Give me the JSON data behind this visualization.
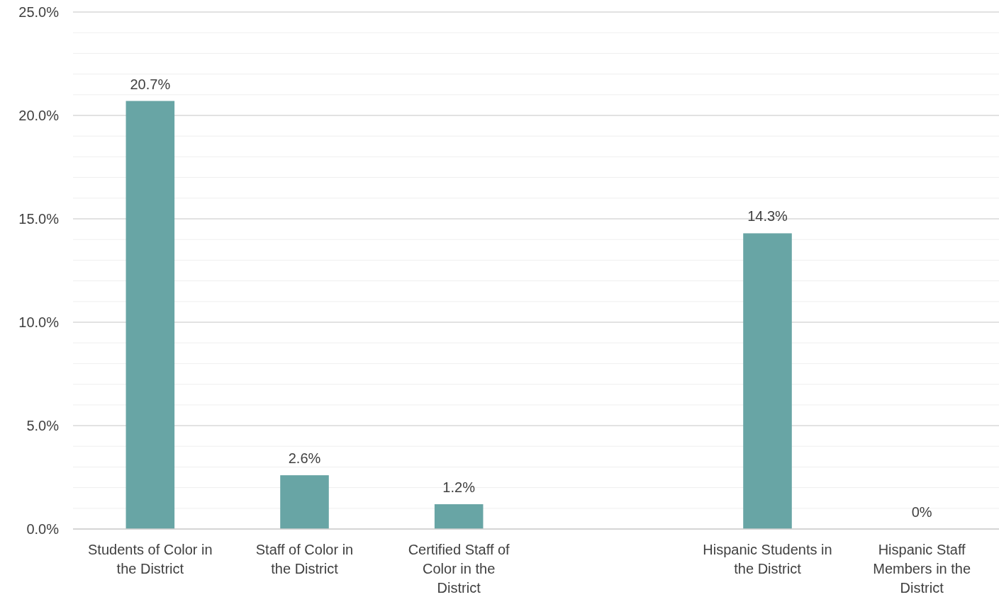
{
  "chart_data": {
    "type": "bar",
    "categories": [
      "Students of Color in the District",
      "Staff of Color in the District",
      "Certified Staff of Color in the District",
      null,
      "Hispanic Students in the District",
      "Hispanic Staff Members in the District"
    ],
    "values": [
      20.7,
      2.6,
      1.2,
      null,
      14.3,
      0
    ],
    "value_labels": [
      "20.7%",
      "2.6%",
      "1.2%",
      null,
      "14.3%",
      "0%"
    ],
    "color": "#68a5a5",
    "ylim": [
      0,
      25
    ],
    "yticks": [
      {
        "value": 0,
        "label": "0.0%"
      },
      {
        "value": 1,
        "label": null
      },
      {
        "value": 2,
        "label": null
      },
      {
        "value": 3,
        "label": null
      },
      {
        "value": 4,
        "label": null
      },
      {
        "value": 5,
        "label": "5.0%"
      },
      {
        "value": 6,
        "label": null
      },
      {
        "value": 7,
        "label": null
      },
      {
        "value": 8,
        "label": null
      },
      {
        "value": 9,
        "label": null
      },
      {
        "value": 10,
        "label": "10.0%"
      },
      {
        "value": 11,
        "label": null
      },
      {
        "value": 12,
        "label": null
      },
      {
        "value": 13,
        "label": null
      },
      {
        "value": 14,
        "label": null
      },
      {
        "value": 15,
        "label": "15.0%"
      },
      {
        "value": 16,
        "label": null
      },
      {
        "value": 17,
        "label": null
      },
      {
        "value": 18,
        "label": null
      },
      {
        "value": 19,
        "label": null
      },
      {
        "value": 20,
        "label": "20.0%"
      },
      {
        "value": 21,
        "label": null
      },
      {
        "value": 22,
        "label": null
      },
      {
        "value": 23,
        "label": null
      },
      {
        "value": 24,
        "label": null
      },
      {
        "value": 25,
        "label": "25.0%"
      }
    ],
    "grid": true
  }
}
